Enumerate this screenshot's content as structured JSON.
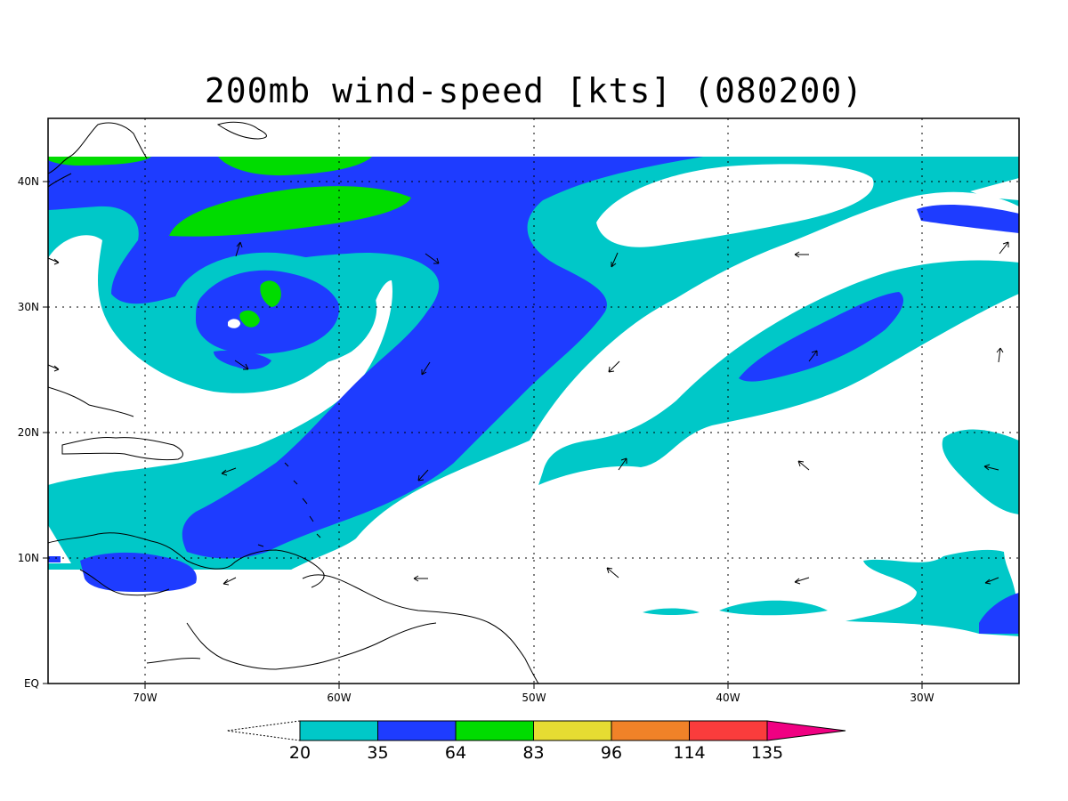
{
  "title": "200mb wind-speed [kts] (080200)",
  "map": {
    "lon_range": [
      -75,
      -25
    ],
    "lat_range": [
      0,
      45
    ],
    "grid": true,
    "x_ticks": [
      "70W",
      "60W",
      "50W",
      "40W",
      "30W"
    ],
    "y_ticks": [
      "EQ",
      "10N",
      "20N",
      "30N",
      "40N"
    ]
  },
  "colorbar": {
    "levels": [
      "20",
      "35",
      "64",
      "83",
      "96",
      "114",
      "135"
    ],
    "colors": [
      "#00c8c8",
      "#1e3cff",
      "#00dc00",
      "#e6dc32",
      "#f08228",
      "#fa3c3c",
      "#f00082"
    ]
  },
  "colors": {
    "cyan": "#00c8c8",
    "blue": "#1e3cff",
    "green": "#00dc00",
    "frame": "#000000"
  }
}
